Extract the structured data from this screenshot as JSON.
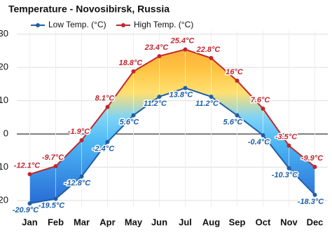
{
  "chart_data": {
    "type": "range-line",
    "title": "Temperature - Novosibirsk, Russia",
    "categories": [
      "Jan",
      "Feb",
      "Mar",
      "Apr",
      "May",
      "Jun",
      "Jul",
      "Aug",
      "Sep",
      "Oct",
      "Nov",
      "Dec"
    ],
    "series": [
      {
        "name": "Low Temp. (°C)",
        "color": "#1f5fa6",
        "values": [
          -20.9,
          -19.5,
          -12.8,
          -2.4,
          5.6,
          11.2,
          13.8,
          11.2,
          5.6,
          -0.4,
          -10.3,
          -18.3
        ],
        "value_labels": [
          "-20.9°C",
          "-19.5°C",
          "-12.8°C",
          "-2.4°C",
          "5.6°C",
          "11.2°C",
          "13.8°C",
          "11.2°C",
          "5.6°C",
          "-0.4°C",
          "-10.3°C",
          "-18.3°C"
        ]
      },
      {
        "name": "High Temp. (°C)",
        "color": "#c0272d",
        "values": [
          -12.1,
          -9.7,
          -1.9,
          8.1,
          18.8,
          23.4,
          25.4,
          22.8,
          16,
          7.6,
          -3.5,
          -9.9
        ],
        "value_labels": [
          "-12.1°C",
          "-9.7°C",
          "-1.9°C",
          "8.1°C",
          "18.8°C",
          "23.4°C",
          "25.4°C",
          "22.8°C",
          "16°C",
          "7.6°C",
          "-3.5°C",
          "-9.9°C"
        ]
      }
    ],
    "ylim": [
      -22,
      31
    ],
    "yticks": [
      -20,
      -10,
      0,
      10,
      20,
      30
    ],
    "grid": true
  }
}
